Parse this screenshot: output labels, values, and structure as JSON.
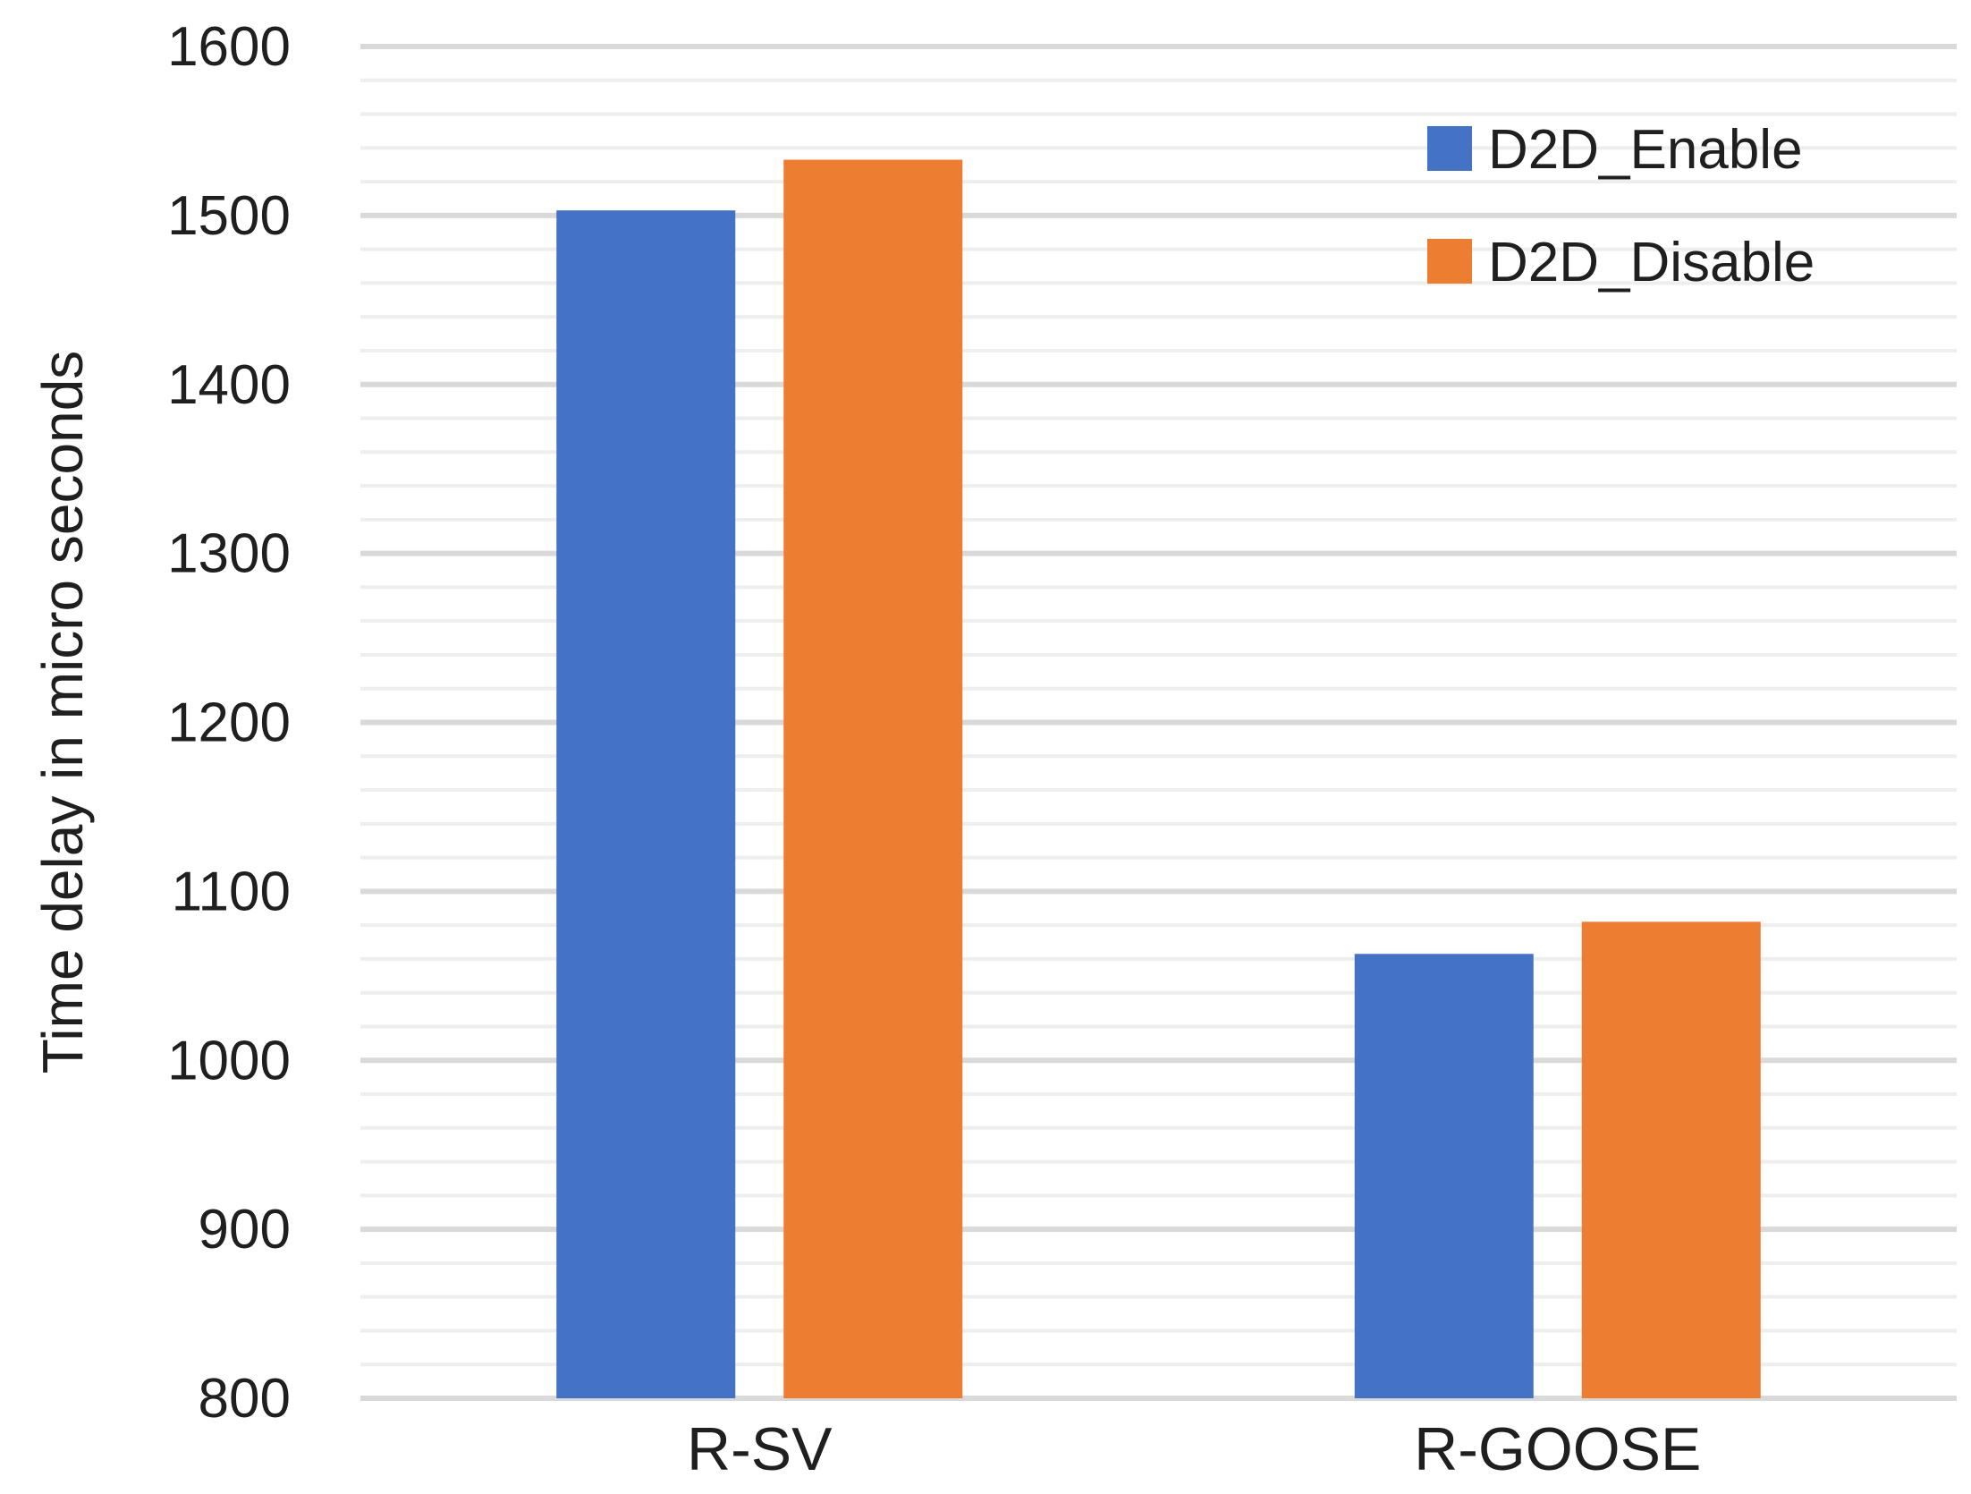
{
  "chart_data": {
    "type": "bar",
    "title": "",
    "xlabel": "",
    "ylabel": "Time delay in micro seconds",
    "categories": [
      "R-SV",
      "R-GOOSE"
    ],
    "series": [
      {
        "name": "D2D_Enable",
        "color": "#4472C4",
        "values": [
          1503,
          1063
        ]
      },
      {
        "name": "D2D_Disable",
        "color": "#ED7D31",
        "values": [
          1533,
          1082
        ]
      }
    ],
    "ylim": [
      800,
      1600
    ],
    "yticks": [
      "800",
      "900",
      "1000",
      "1100",
      "1200",
      "1300",
      "1400",
      "1500",
      "1600"
    ],
    "major_step": 100,
    "minor_step": 20,
    "grid": true,
    "legend": "top-right",
    "gridline_color": "#D9D9D9"
  }
}
